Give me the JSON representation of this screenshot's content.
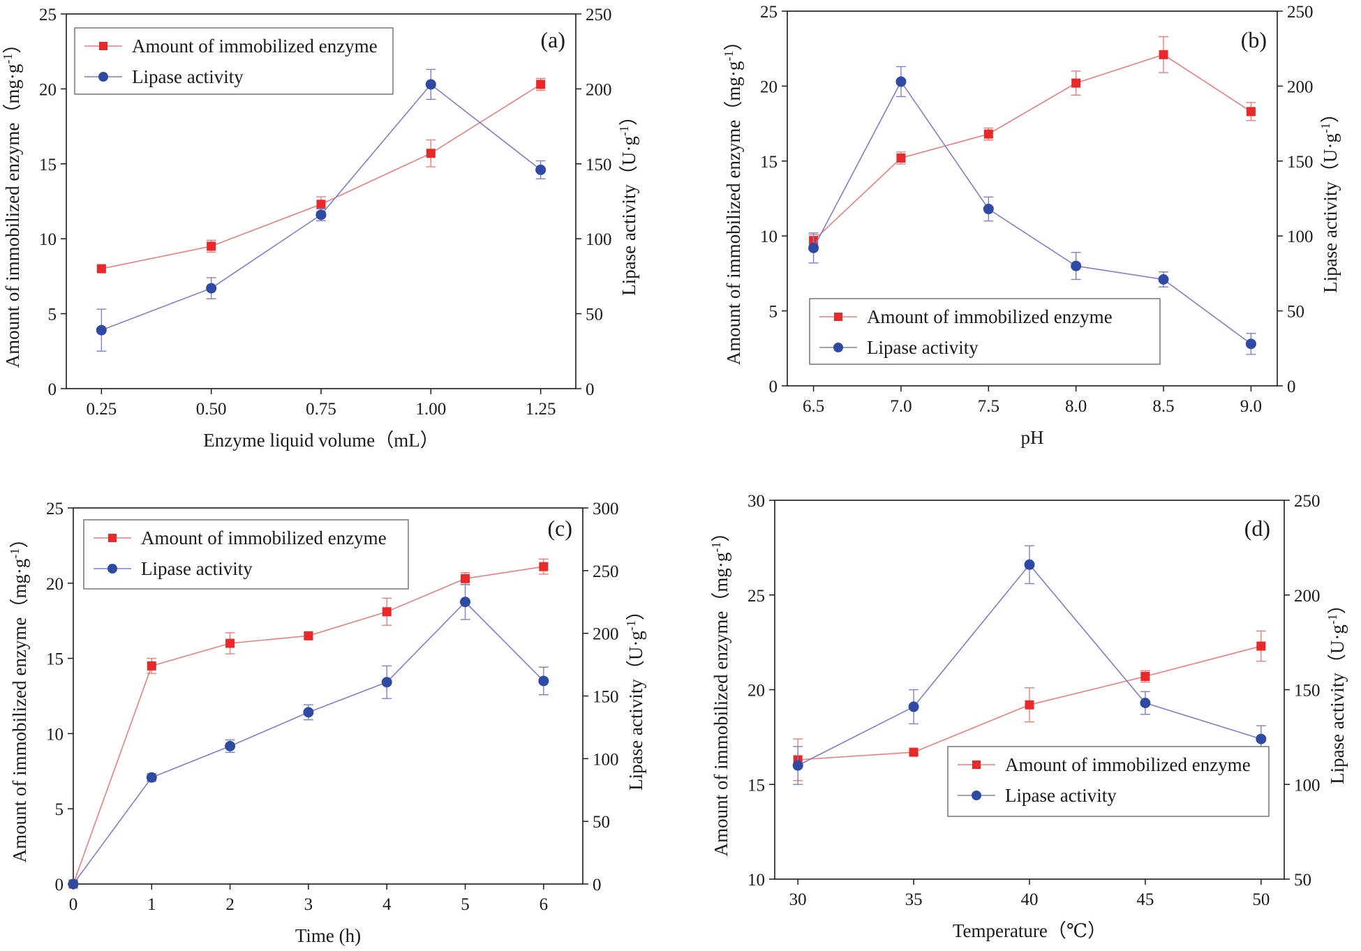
{
  "figure": {
    "colors": {
      "amount": "#e8292a",
      "amount_line": "#f07c7c",
      "lipase": "#2e4aa3",
      "lipase_line": "#7b7fd0",
      "axis": "#1a1a1a"
    }
  },
  "chart_data": [
    {
      "id": "a",
      "type": "line",
      "panel_label": "(a)",
      "title": "",
      "xlabel": "Enzyme liquid volume（mL）",
      "ylabel_left": "Amount of immobilized enzyme（mg·g",
      "ylabel_left_sup": "-1",
      "ylabel_left_tail": "）",
      "ylabel_right": "Lipase activity（U·g",
      "ylabel_right_sup": "-1",
      "ylabel_right_tail": "）",
      "x": [
        0.25,
        0.5,
        0.75,
        1.0,
        1.25
      ],
      "xlim": [
        0.17,
        1.33
      ],
      "xticks": [
        0.25,
        0.5,
        0.75,
        1.0,
        1.25
      ],
      "xtick_labels": [
        "0.25",
        "0.50",
        "0.75",
        "1.00",
        "1.25"
      ],
      "ylim_left": [
        0,
        25
      ],
      "yticks_left": [
        0,
        5,
        10,
        15,
        20,
        25
      ],
      "ylim_right": [
        0,
        250
      ],
      "yticks_right": [
        0,
        50,
        100,
        150,
        200,
        250
      ],
      "legend_position": "top-left",
      "series": [
        {
          "name": "Amount of immobilized enzyme",
          "axis": "left",
          "marker": "square",
          "values": [
            8.0,
            9.5,
            12.3,
            15.7,
            20.3
          ],
          "errors": [
            0.15,
            0.4,
            0.5,
            0.9,
            0.4
          ]
        },
        {
          "name": "Lipase activity",
          "axis": "right",
          "marker": "circle",
          "values": [
            39,
            67,
            116,
            203,
            146
          ],
          "errors": [
            14,
            7,
            4,
            10,
            6
          ]
        }
      ]
    },
    {
      "id": "b",
      "type": "line",
      "panel_label": "(b)",
      "title": "",
      "xlabel": "pH",
      "ylabel_left": "Amount of immobilized enzyme（mg·g",
      "ylabel_left_sup": "-1",
      "ylabel_left_tail": "）",
      "ylabel_right": "Lipase activity（U·g",
      "ylabel_right_sup": "-1",
      "ylabel_right_tail": "）",
      "x": [
        6.5,
        7.0,
        7.5,
        8.0,
        8.5,
        9.0
      ],
      "xlim": [
        6.35,
        9.15
      ],
      "xticks": [
        6.5,
        7.0,
        7.5,
        8.0,
        8.5,
        9.0
      ],
      "xtick_labels": [
        "6.5",
        "7.0",
        "7.5",
        "8.0",
        "8.5",
        "9.0"
      ],
      "ylim_left": [
        0,
        25
      ],
      "yticks_left": [
        0,
        5,
        10,
        15,
        20,
        25
      ],
      "ylim_right": [
        0,
        250
      ],
      "yticks_right": [
        0,
        50,
        100,
        150,
        200,
        250
      ],
      "legend_position": "bottom-left",
      "series": [
        {
          "name": "Amount of immobilized enzyme",
          "axis": "left",
          "marker": "square",
          "values": [
            9.7,
            15.2,
            16.8,
            20.2,
            22.1,
            18.3
          ],
          "errors": [
            0.4,
            0.4,
            0.4,
            0.8,
            1.2,
            0.6
          ]
        },
        {
          "name": "Lipase activity",
          "axis": "right",
          "marker": "circle",
          "values": [
            92,
            203,
            118,
            80,
            71,
            28
          ],
          "errors": [
            10,
            10,
            8,
            9,
            5,
            7
          ]
        }
      ]
    },
    {
      "id": "c",
      "type": "line",
      "panel_label": "(c)",
      "title": "",
      "xlabel": "Time (h)",
      "ylabel_left": "Amount of immobilized enzyme（mg·g",
      "ylabel_left_sup": "-1",
      "ylabel_left_tail": "）",
      "ylabel_right": "Lipase activity（U·g",
      "ylabel_right_sup": "-1",
      "ylabel_right_tail": "）",
      "x": [
        0,
        1,
        2,
        3,
        4,
        5,
        6
      ],
      "xlim": [
        0,
        6.5
      ],
      "xticks": [
        0,
        1,
        2,
        3,
        4,
        5,
        6
      ],
      "xtick_labels": [
        "0",
        "1",
        "2",
        "3",
        "4",
        "5",
        "6"
      ],
      "ylim_left": [
        0,
        25
      ],
      "yticks_left": [
        0,
        5,
        10,
        15,
        20,
        25
      ],
      "ylim_right": [
        0,
        300
      ],
      "yticks_right": [
        0,
        50,
        100,
        150,
        200,
        250,
        300
      ],
      "legend_position": "top-left",
      "series": [
        {
          "name": "Amount of immobilized enzyme",
          "axis": "left",
          "marker": "square",
          "values": [
            0,
            14.5,
            16.0,
            16.5,
            18.1,
            20.3,
            21.1
          ],
          "errors": [
            0,
            0.5,
            0.7,
            0.2,
            0.9,
            0.4,
            0.5
          ]
        },
        {
          "name": "Lipase activity",
          "axis": "right",
          "marker": "circle",
          "values": [
            0,
            85,
            110,
            137,
            161,
            225,
            162
          ],
          "errors": [
            0,
            3,
            5,
            6,
            13,
            14,
            11
          ]
        }
      ]
    },
    {
      "id": "d",
      "type": "line",
      "panel_label": "(d)",
      "title": "",
      "xlabel": "Temperature（℃）",
      "ylabel_left": "Amount of immobilized enzyme（mg·g",
      "ylabel_left_sup": "-1",
      "ylabel_left_tail": "）",
      "ylabel_right": "Lipase activity（U·g",
      "ylabel_right_sup": "-1",
      "ylabel_right_tail": "）",
      "x": [
        30,
        35,
        40,
        45,
        50
      ],
      "xlim": [
        29,
        51
      ],
      "xticks": [
        30,
        35,
        40,
        45,
        50
      ],
      "xtick_labels": [
        "30",
        "35",
        "40",
        "45",
        "50"
      ],
      "ylim_left": [
        10,
        30
      ],
      "yticks_left": [
        10,
        15,
        20,
        25,
        30
      ],
      "ylim_right": [
        50,
        250
      ],
      "yticks_right": [
        50,
        100,
        150,
        200,
        250
      ],
      "legend_position": "bottom-right",
      "series": [
        {
          "name": "Amount of immobilized enzyme",
          "axis": "left",
          "marker": "square",
          "values": [
            16.3,
            16.7,
            19.2,
            20.7,
            22.3
          ],
          "errors": [
            1.1,
            0.1,
            0.9,
            0.3,
            0.8
          ]
        },
        {
          "name": "Lipase activity",
          "axis": "right",
          "marker": "circle",
          "values": [
            110,
            141,
            216,
            143,
            124
          ],
          "errors": [
            10,
            9,
            10,
            6,
            7
          ]
        }
      ]
    }
  ]
}
